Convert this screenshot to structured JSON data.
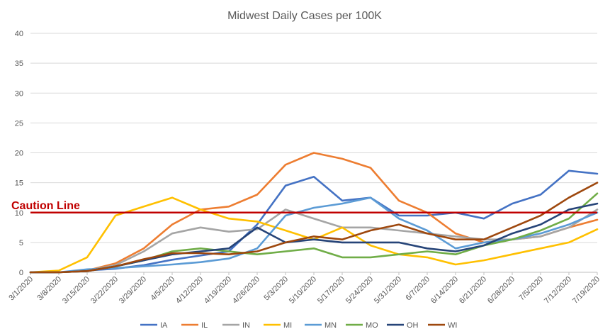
{
  "chart_data": {
    "type": "line",
    "title": "Midwest Daily Cases per 100K",
    "xlabel": "",
    "ylabel": "",
    "ylim": [
      0,
      40
    ],
    "yticks": [
      0,
      5,
      10,
      15,
      20,
      25,
      30,
      35,
      40
    ],
    "x_start": "2020-03-01",
    "xtick_labels": [
      "3/1/2020",
      "3/8/2020",
      "3/15/2020",
      "3/22/2020",
      "3/29/2020",
      "4/5/2020",
      "4/12/2020",
      "4/19/2020",
      "4/26/2020",
      "5/3/2020",
      "5/10/2020",
      "5/17/2020",
      "5/24/2020",
      "5/31/2020",
      "6/7/2020",
      "6/14/2020",
      "6/21/2020",
      "6/28/2020",
      "7/5/2020",
      "7/12/2020",
      "7/19/2020"
    ],
    "grid": "horizontal",
    "legend_position": "bottom",
    "reference_line": {
      "label": "Caution Line",
      "value": 10,
      "color": "#c00000"
    },
    "x_dates": [
      "3/1/2020",
      "3/8/2020",
      "3/15/2020",
      "3/22/2020",
      "3/29/2020",
      "4/5/2020",
      "4/12/2020",
      "4/19/2020",
      "4/26/2020",
      "5/3/2020",
      "5/10/2020",
      "5/17/2020",
      "5/24/2020",
      "5/31/2020",
      "6/7/2020",
      "6/14/2020",
      "6/21/2020",
      "6/28/2020",
      "7/5/2020",
      "7/12/2020",
      "7/19/2020"
    ],
    "series": [
      {
        "name": "IA",
        "color": "#4472c4",
        "values": [
          0,
          0,
          0.3,
          0.6,
          1.2,
          2.1,
          2.8,
          3.5,
          8,
          14.5,
          16,
          12,
          12.5,
          9.5,
          9.5,
          10,
          9,
          11.5,
          13,
          17,
          16.5
        ]
      },
      {
        "name": "IL",
        "color": "#ed7d31",
        "values": [
          0,
          0,
          0.3,
          1.5,
          4,
          8,
          10.5,
          11,
          13,
          18,
          20,
          19,
          17.5,
          12,
          10,
          6.5,
          5,
          5.5,
          6,
          7.5,
          8.8
        ]
      },
      {
        "name": "IN",
        "color": "#a5a5a5",
        "values": [
          0,
          0,
          0.3,
          1.2,
          3.5,
          6.5,
          7.5,
          6.8,
          7.2,
          10.5,
          9,
          7.5,
          7.5,
          7,
          6.5,
          6,
          5.5,
          5.5,
          6,
          7.5,
          10.5
        ]
      },
      {
        "name": "MI",
        "color": "#ffc000",
        "values": [
          0,
          0.3,
          2.5,
          9.5,
          11,
          12.5,
          10.5,
          9,
          8.5,
          7,
          5.5,
          7.5,
          4.5,
          3,
          2.5,
          1.3,
          2,
          3,
          4,
          5,
          7.2
        ]
      },
      {
        "name": "MN",
        "color": "#5b9bd5",
        "values": [
          0,
          0,
          0.5,
          0.7,
          1,
          1.3,
          1.7,
          2.3,
          4,
          9.5,
          10.8,
          11.5,
          12.5,
          9,
          7,
          4,
          5,
          5.5,
          6.5,
          8,
          10
        ]
      },
      {
        "name": "MO",
        "color": "#70ad47",
        "values": [
          0,
          0,
          0.2,
          1,
          2,
          3.5,
          4,
          3.5,
          3,
          3.5,
          4,
          2.5,
          2.5,
          3,
          3.5,
          3,
          4.5,
          5.5,
          7,
          9,
          13.2
        ]
      },
      {
        "name": "OH",
        "color": "#264478",
        "values": [
          0,
          0,
          0.2,
          1,
          2,
          3,
          3.5,
          4,
          7.5,
          5,
          5.5,
          5,
          5,
          5,
          4,
          3.5,
          4.5,
          6.5,
          8,
          10.5,
          11.5
        ]
      },
      {
        "name": "WI",
        "color": "#9e480e",
        "values": [
          0,
          0,
          0.2,
          1,
          2.2,
          3.2,
          3.2,
          3,
          3.5,
          5,
          6,
          5.5,
          7,
          8,
          6.5,
          5.5,
          5.5,
          7.5,
          9.5,
          12.5,
          15
        ]
      }
    ]
  }
}
